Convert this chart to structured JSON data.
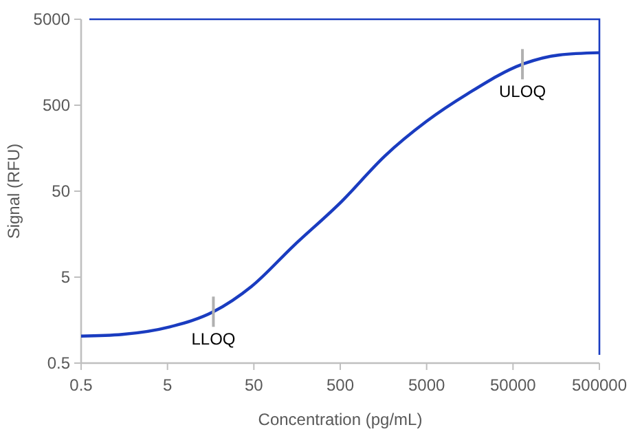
{
  "chart_data": {
    "type": "line",
    "xlabel": "Concentration (pg/mL)",
    "ylabel": "Signal (RFU)",
    "log": "xy",
    "grid": false,
    "marker": "none",
    "line_style": "solid",
    "xlim": [
      0.5,
      500000
    ],
    "xticks": [
      0.5,
      5,
      50,
      500,
      5000,
      50000,
      500000
    ],
    "ylim": [
      0.5,
      5000
    ],
    "yticks": [
      0.5,
      5,
      50,
      500,
      5000
    ],
    "series": [
      {
        "color": "#1a3cc0",
        "x": [
          0.5,
          1.5,
          5.3,
          17,
          47,
          143,
          515,
          1650,
          4970,
          14800,
          64300,
          171000,
          500000
        ],
        "values": [
          1.03,
          1.08,
          1.32,
          1.98,
          3.9,
          11.5,
          37.7,
          129,
          324,
          676,
          1500,
          1920,
          2040
        ]
      }
    ],
    "annotations": [
      {
        "text": "LLOQ",
        "x": 17,
        "y": 1.98
      },
      {
        "text": "ULOQ",
        "x": 64300,
        "y": 1500
      }
    ]
  }
}
